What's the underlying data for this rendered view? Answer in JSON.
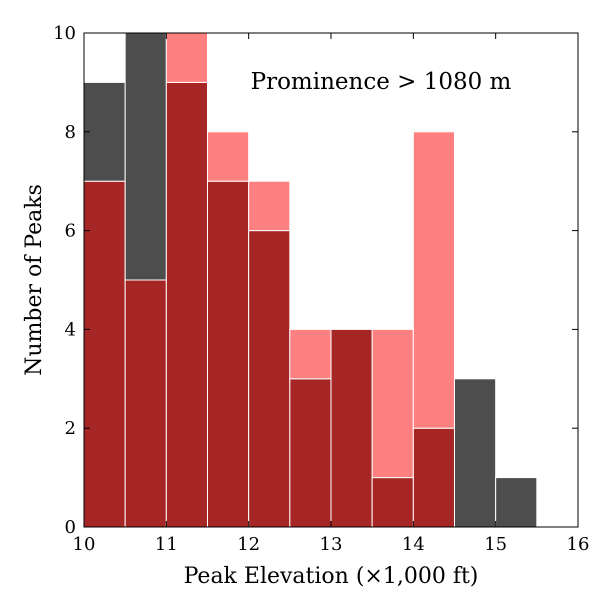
{
  "chart_data": {
    "type": "bar",
    "subtype": "overlapping-histogram",
    "bin_edges": [
      10,
      10.5,
      11,
      11.5,
      12,
      12.5,
      13,
      13.5,
      14,
      14.5,
      15,
      15.5,
      16
    ],
    "series": [
      {
        "color": "#4d4d4d",
        "values": [
          9,
          10,
          9,
          7,
          6,
          3,
          4,
          1,
          2,
          3,
          1,
          0
        ]
      },
      {
        "color": "#ff8080",
        "values": [
          7,
          5,
          10,
          8,
          7,
          4,
          4,
          4,
          8,
          0,
          0,
          0
        ]
      }
    ],
    "overlap_color": "#a62626",
    "xlabel": "Peak Elevation (×1,000 ft)",
    "ylabel": "Number of Peaks",
    "annotation": "Prominence > 1080 m",
    "xlim": [
      10,
      16
    ],
    "ylim": [
      0,
      10
    ],
    "xticks": [
      "10",
      "11",
      "12",
      "13",
      "14",
      "15",
      "16"
    ],
    "yticks": [
      "0",
      "2",
      "4",
      "6",
      "8",
      "10"
    ],
    "grid": false
  }
}
